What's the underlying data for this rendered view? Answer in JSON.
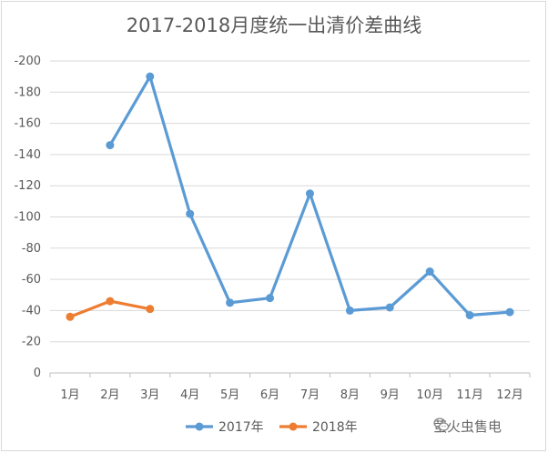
{
  "chart_data": {
    "type": "line",
    "title": "2017-2018月度统一出清价差曲线",
    "categories": [
      "1月",
      "2月",
      "3月",
      "4月",
      "5月",
      "6月",
      "7月",
      "8月",
      "9月",
      "10月",
      "11月",
      "12月"
    ],
    "y_ticks": [
      "-200",
      "-180",
      "-160",
      "-140",
      "-120",
      "-100",
      "-80",
      "-60",
      "-40",
      "-20",
      "0"
    ],
    "ylim": [
      0,
      -200
    ],
    "y_reversed": true,
    "grid": true,
    "legend_position": "bottom",
    "series": [
      {
        "name": "2017年",
        "color": "#5b9bd5",
        "values": [
          null,
          -146,
          -190,
          -102,
          -45,
          -48,
          -115,
          -40,
          -42,
          -65,
          -37,
          -39
        ]
      },
      {
        "name": "2018年",
        "color": "#ed7d31",
        "values": [
          -36,
          -46,
          -41,
          null,
          null,
          null,
          null,
          null,
          null,
          null,
          null,
          null
        ]
      }
    ]
  },
  "watermark": {
    "text": "萤火虫售电",
    "icon": "wechat-icon"
  }
}
